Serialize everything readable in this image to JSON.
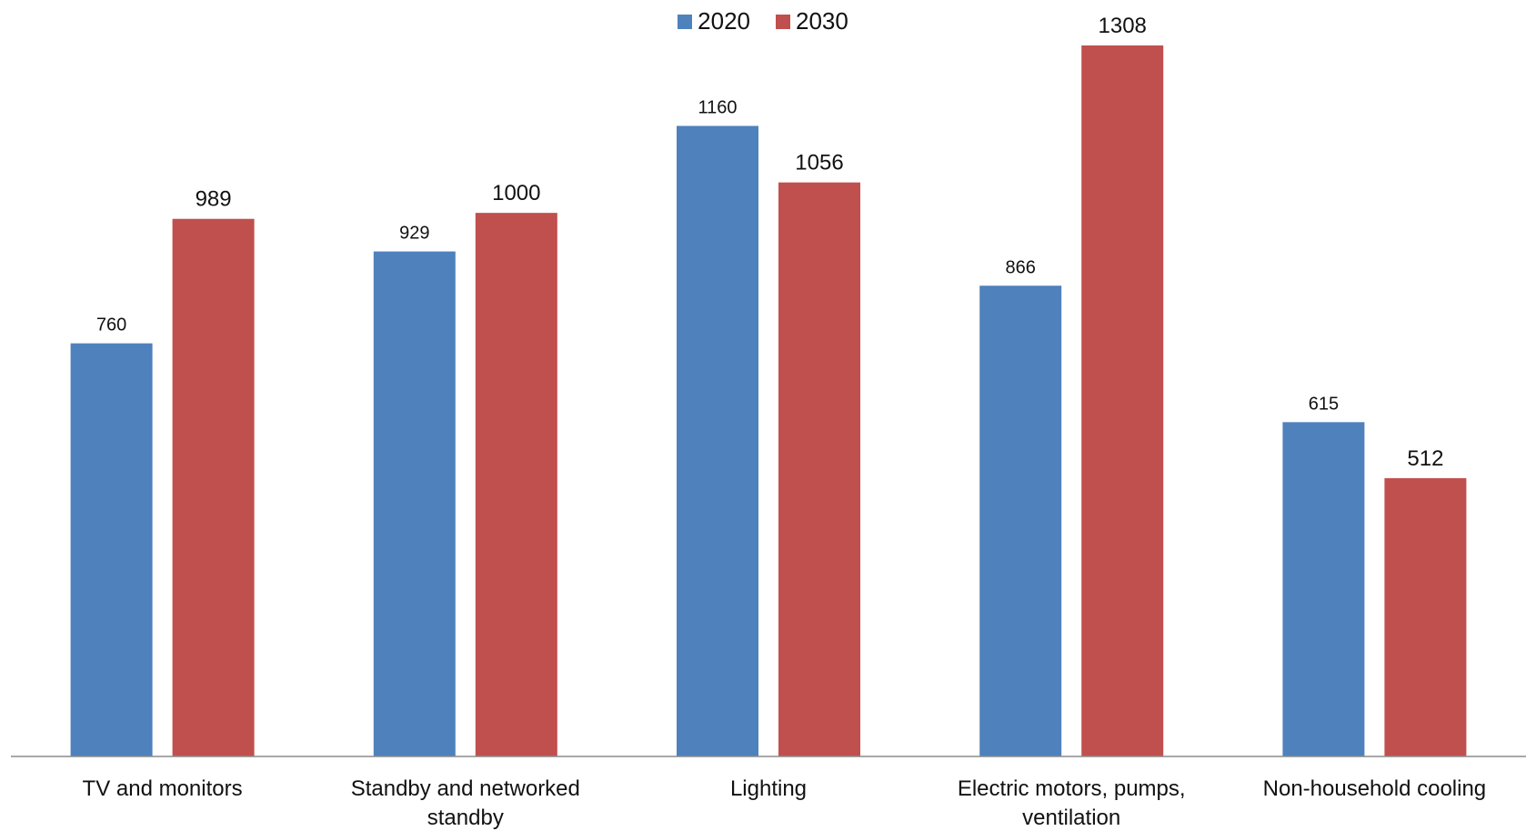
{
  "chart_data": {
    "type": "bar",
    "categories": [
      "TV and monitors",
      "Standby and networked standby",
      "Lighting",
      "Electric motors, pumps, ventilation",
      "Non-household cooling"
    ],
    "category_lines": [
      [
        "TV and monitors"
      ],
      [
        "Standby and networked",
        "standby"
      ],
      [
        "Lighting"
      ],
      [
        "Electric motors, pumps,",
        "ventilation"
      ],
      [
        "Non-household cooling"
      ]
    ],
    "series": [
      {
        "name": "2020",
        "color": "#4F81BD",
        "values": [
          760,
          929,
          1160,
          866,
          615
        ]
      },
      {
        "name": "2030",
        "color": "#C0504D",
        "values": [
          989,
          1000,
          1056,
          1308,
          512
        ]
      }
    ],
    "ylim": [
      0,
      1308
    ],
    "grid": false,
    "legend_position": "top-center",
    "data_labels": true
  }
}
